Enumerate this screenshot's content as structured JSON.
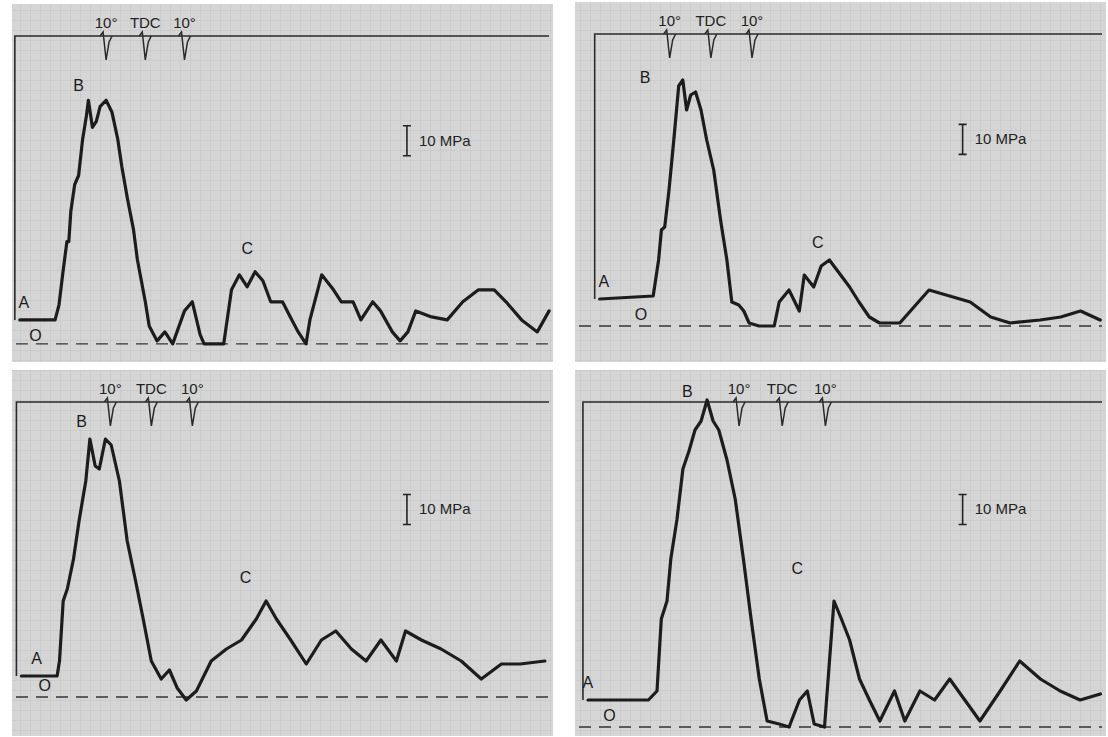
{
  "chart_data": [
    {
      "type": "line",
      "x": [
        -32,
        -23,
        -22,
        -21,
        -20,
        -19.5,
        -19,
        -18,
        -17,
        -16,
        -15,
        -14.5,
        -13.5,
        -12.5,
        -11.5,
        -10,
        -8.5,
        -7,
        -6,
        -4.5,
        -3,
        -2,
        0,
        1,
        3,
        5,
        7,
        10,
        12,
        14,
        15,
        20,
        22,
        24,
        26,
        28,
        30,
        32,
        35,
        37,
        39,
        41,
        42,
        44,
        45,
        48,
        50,
        53,
        55,
        58,
        60,
        63,
        65,
        67,
        69,
        73,
        77,
        81,
        85,
        89,
        92,
        96,
        100,
        103
      ],
      "series": [
        {
          "color": "#1c1c1c",
          "values": [
            8,
            8,
            13,
            24,
            34,
            34,
            44,
            53,
            56,
            68,
            76,
            81,
            72,
            74,
            79,
            81,
            77,
            68,
            59,
            48,
            38,
            28,
            14,
            6,
            1,
            4,
            0,
            11,
            14,
            3,
            0,
            0,
            18,
            23,
            19,
            24,
            21,
            14,
            14,
            9,
            4,
            0,
            8,
            18,
            23,
            18,
            14,
            14,
            8,
            14,
            11,
            4,
            1,
            4,
            11,
            9,
            8,
            14,
            18,
            18,
            14,
            8,
            4,
            11
          ]
        }
      ],
      "xlim": [
        -34,
        104
      ],
      "ylim": [
        -6,
        113
      ],
      "tick_labels": false,
      "grid": true,
      "markers": [
        {
          "value": -10,
          "label": "10°"
        },
        {
          "value": 0,
          "label": "TDC"
        },
        {
          "value": 10,
          "label": "10°"
        }
      ],
      "scale_bar": {
        "value": 10,
        "label": "10 MPa"
      },
      "reference_lines": [
        {
          "value": 0,
          "line_style": "dashed"
        }
      ],
      "annotations": [
        {
          "text": "A",
          "x": -31,
          "y": 12
        },
        {
          "text": "O",
          "x": -28,
          "y": 1
        },
        {
          "text": "B",
          "x": -17,
          "y": 84
        },
        {
          "text": "C",
          "x": 26,
          "y": 30
        }
      ]
    },
    {
      "type": "line",
      "x": [
        -27,
        -14,
        -12.7,
        -12,
        -11.2,
        -10.2,
        -9,
        -7.8,
        -6.8,
        -5.9,
        -4.9,
        -3.7,
        -2.4,
        -1,
        0.7,
        2.4,
        3.9,
        5.1,
        6.8,
        8,
        9.3,
        11.7,
        15.4,
        16.6,
        19,
        21.5,
        22.7,
        25,
        26.8,
        28.8,
        31,
        33.7,
        36,
        38.5,
        41,
        45.9,
        53,
        58,
        63,
        68,
        72.7,
        80,
        85,
        89.8,
        94.6
      ],
      "series": [
        {
          "color": "#1c1c1c",
          "values": [
            9,
            10,
            22,
            32,
            33,
            45,
            62,
            80,
            82,
            72,
            77,
            78,
            72,
            62,
            52,
            35,
            22,
            8,
            7,
            5,
            1,
            0,
            0,
            8,
            12,
            5,
            17,
            13,
            20,
            22,
            18,
            13,
            8,
            3,
            1,
            1,
            12,
            10,
            8,
            3,
            1,
            2,
            3,
            5,
            2
          ]
        }
      ],
      "xlim": [
        -33,
        96
      ],
      "ylim": [
        -12,
        108
      ],
      "tick_labels": false,
      "grid": true,
      "markers": [
        {
          "value": -10,
          "label": "10°"
        },
        {
          "value": 0,
          "label": "TDC"
        },
        {
          "value": 10,
          "label": "10°"
        }
      ],
      "scale_bar": {
        "value": 10,
        "label": "10 MPa"
      },
      "reference_lines": [
        {
          "value": 0,
          "line_style": "dashed"
        }
      ],
      "annotations": [
        {
          "text": "A",
          "x": -26,
          "y": 13
        },
        {
          "text": "O",
          "x": -17,
          "y": 2
        },
        {
          "text": "B",
          "x": -16,
          "y": 81
        },
        {
          "text": "C",
          "x": 26,
          "y": 26
        }
      ]
    },
    {
      "type": "line",
      "x": [
        -31.7,
        -23,
        -22.4,
        -21.5,
        -20.5,
        -19,
        -17.6,
        -16,
        -15,
        -13.7,
        -12.7,
        -11.2,
        -9.8,
        -7.8,
        -5.9,
        -3.9,
        -2,
        0,
        2.4,
        4.4,
        6.3,
        8.5,
        11,
        14.6,
        18.3,
        22,
        25.6,
        28,
        30.5,
        34,
        37.8,
        41.5,
        45,
        48.8,
        52.4,
        56,
        59.8,
        62,
        65.9,
        70.7,
        75.6,
        80.5,
        85.4,
        90,
        96
      ],
      "series": [
        {
          "color": "#1c1c1c",
          "values": [
            7,
            7,
            12,
            32,
            36,
            46,
            59,
            72,
            86,
            77,
            76,
            86,
            84,
            72,
            52,
            39,
            26,
            12,
            6,
            9,
            3,
            -1,
            2,
            12,
            16,
            19,
            26,
            32,
            26,
            19,
            11,
            19,
            22,
            16,
            12,
            19,
            12,
            22,
            19,
            16,
            12,
            6,
            11,
            11,
            12
          ]
        }
      ],
      "xlim": [
        -34,
        98
      ],
      "ylim": [
        -13,
        109
      ],
      "tick_labels": false,
      "grid": true,
      "markers": [
        {
          "value": -10,
          "label": "10°"
        },
        {
          "value": 0,
          "label": "TDC"
        },
        {
          "value": 10,
          "label": "10°"
        }
      ],
      "scale_bar": {
        "value": 10,
        "label": "10 MPa"
      },
      "reference_lines": [
        {
          "value": 0,
          "line_style": "dashed"
        }
      ],
      "annotations": [
        {
          "text": "A",
          "x": -28,
          "y": 11
        },
        {
          "text": "O",
          "x": -26,
          "y": 2
        },
        {
          "text": "B",
          "x": -17,
          "y": 90
        },
        {
          "text": "C",
          "x": 23,
          "y": 38
        }
      ]
    },
    {
      "type": "line",
      "x": [
        -45,
        -31,
        -29,
        -28,
        -26.7,
        -25.8,
        -24.4,
        -23,
        -21.6,
        -20.2,
        -18.8,
        -17.4,
        -16,
        -14.7,
        -12.8,
        -10.9,
        -9,
        -7.2,
        -5.3,
        -3.5,
        -0.7,
        1.6,
        4,
        5.8,
        7.4,
        9.8,
        12,
        13.7,
        15.6,
        17.9,
        20.2,
        22.6,
        26,
        28.4,
        31.9,
        35.3,
        38.8,
        42.3,
        45.8,
        50.5,
        55,
        59.8,
        64.4,
        69,
        73.7
      ],
      "series": [
        {
          "color": "#1c1c1c",
          "values": [
            9,
            9,
            12,
            36,
            42,
            56,
            69,
            86,
            92,
            99,
            102,
            109,
            102,
            99,
            89,
            76,
            56,
            36,
            16,
            2,
            1,
            0,
            9,
            12,
            1,
            0,
            42,
            36,
            29,
            16,
            9,
            2,
            12,
            2,
            12,
            9,
            16,
            9,
            2,
            12,
            22,
            16,
            12,
            9,
            11
          ]
        }
      ],
      "xlim": [
        -48,
        75
      ],
      "ylim": [
        -3,
        119
      ],
      "tick_labels": false,
      "grid": true,
      "markers": [
        {
          "value": -10,
          "label": "10°"
        },
        {
          "value": 0,
          "label": "TDC"
        },
        {
          "value": 10,
          "label": "10°"
        }
      ],
      "scale_bar": {
        "value": 10,
        "label": "10 MPa"
      },
      "reference_lines": [
        {
          "value": 0,
          "line_style": "dashed"
        }
      ],
      "annotations": [
        {
          "text": "A",
          "x": -45,
          "y": 13
        },
        {
          "text": "O",
          "x": -40,
          "y": 2
        },
        {
          "text": "B",
          "x": -22,
          "y": 110
        },
        {
          "text": "C",
          "x": 3.5,
          "y": 51
        }
      ]
    }
  ]
}
